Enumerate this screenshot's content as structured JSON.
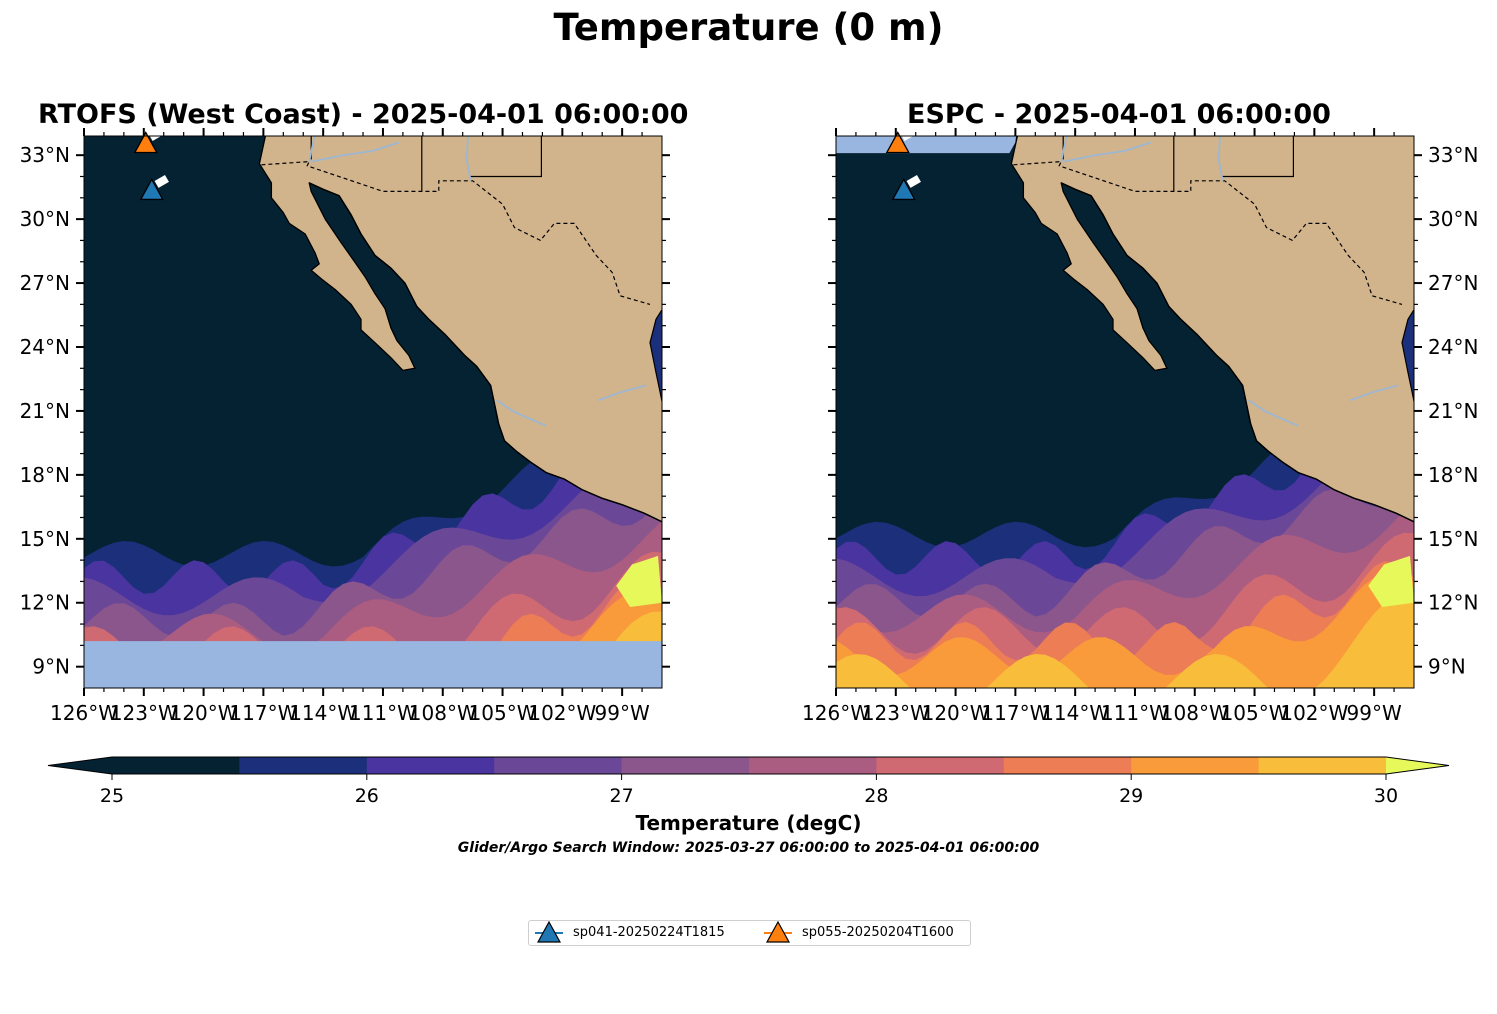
{
  "figure": {
    "title": "Temperature (0 m)",
    "search_window": "Glider/Argo Search Window: 2025-03-27 06:00:00 to 2025-04-01 06:00:00"
  },
  "panels": [
    {
      "title": "RTOFS (West Coast) - 2025-04-01 06:00:00",
      "model_coverage_south": 10.2
    },
    {
      "title": "ESPC - 2025-04-01 06:00:00",
      "model_coverage_south": 8.0
    }
  ],
  "map_extent": {
    "lon": [
      -126,
      -97
    ],
    "lat": [
      8,
      33.9
    ]
  },
  "axes": {
    "lon_ticks": [
      "126°W",
      "123°W",
      "120°W",
      "117°W",
      "114°W",
      "111°W",
      "108°W",
      "105°W",
      "102°W",
      "99°W"
    ],
    "lat_ticks": [
      "33°N",
      "30°N",
      "27°N",
      "24°N",
      "21°N",
      "18°N",
      "15°N",
      "12°N",
      "9°N"
    ]
  },
  "colorbar": {
    "label": "Temperature (degC)",
    "ticks": [
      "25",
      "26",
      "27",
      "28",
      "29",
      "30"
    ],
    "min": 25,
    "max": 30,
    "step": 0.5,
    "colors": [
      "#052233",
      "#1b2f7a",
      "#4a34a0",
      "#6b4897",
      "#8a568c",
      "#ab5c81",
      "#d06a72",
      "#ec7d55",
      "#f99b3a",
      "#f9bd3c"
    ],
    "extend_low": "#052233",
    "extend_high": "#e6f85a"
  },
  "legend": {
    "entries": [
      {
        "label": "sp041-20250224T1815",
        "color": "#1f77b4"
      },
      {
        "label": "sp055-20250204T1600",
        "color": "#ff7f0e"
      }
    ]
  },
  "chart_data": {
    "type": "heatmap",
    "title": "Temperature (0 m)",
    "xlabel": "",
    "ylabel": "",
    "xlim": [
      -126,
      -97
    ],
    "ylim": [
      8,
      33.9
    ],
    "colorbar_label": "Temperature (degC)",
    "colorbar_range": [
      25,
      30
    ],
    "panels": [
      "RTOFS (West Coast) - 2025-04-01 06:00:00",
      "ESPC - 2025-04-01 06:00:00"
    ],
    "series": [
      {
        "name": "sp041-20250224T1815",
        "marker": "triangle",
        "color": "#1f77b4",
        "lon": -122.6,
        "lat": 31.3
      },
      {
        "name": "sp055-20250204T1600",
        "marker": "triangle",
        "color": "#ff7f0e",
        "lon": -122.9,
        "lat": 33.5
      }
    ]
  },
  "colors": {
    "land": "#d2b48c",
    "no_data": "#98b6e0",
    "river": "#9cb7d4",
    "cold_sea": "#052233"
  }
}
